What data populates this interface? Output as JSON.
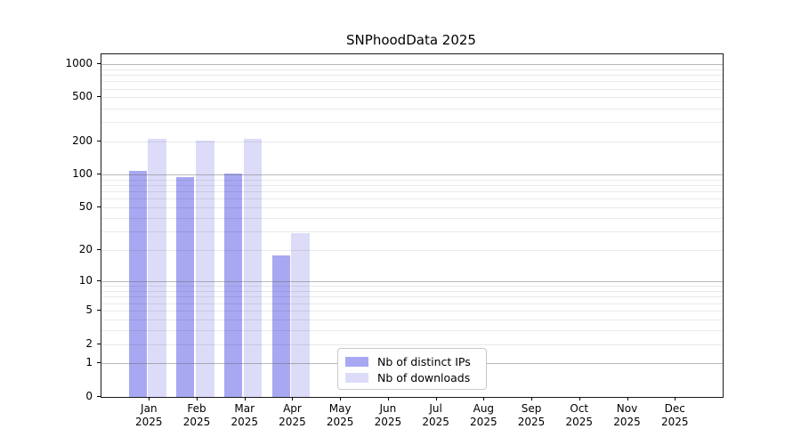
{
  "title": "SNPhoodData 2025",
  "chart_data": {
    "type": "bar",
    "title": "SNPhoodData 2025",
    "categories": [
      "Jan",
      "Feb",
      "Mar",
      "Apr",
      "May",
      "Jun",
      "Jul",
      "Aug",
      "Sep",
      "Oct",
      "Nov",
      "Dec"
    ],
    "year_label": "2025",
    "series": [
      {
        "key": "distinct-ips",
        "name": "Nb of distinct IPs",
        "color": "#a8a8f2",
        "values": [
          108,
          95,
          103,
          18,
          0,
          0,
          0,
          0,
          0,
          0,
          0,
          0
        ]
      },
      {
        "key": "downloads",
        "name": "Nb of downloads",
        "color": "#dcdcf9",
        "values": [
          210,
          202,
          212,
          29,
          0,
          0,
          0,
          0,
          0,
          0,
          0,
          0
        ]
      }
    ],
    "yscale": "log1p",
    "ytick_values": [
      0,
      1,
      2,
      5,
      10,
      20,
      50,
      100,
      200,
      500,
      1000
    ],
    "ytick_labels": [
      "0",
      "1",
      "2",
      "5",
      "10",
      "20",
      "50",
      "100",
      "200",
      "500",
      "1000"
    ],
    "major_gridline_values": [
      1,
      10,
      100,
      1000
    ],
    "minor_gridline_values": [
      2,
      3,
      4,
      5,
      6,
      7,
      8,
      9,
      20,
      30,
      40,
      50,
      60,
      70,
      80,
      90,
      200,
      300,
      400,
      500,
      600,
      700,
      800,
      900
    ],
    "ylim": [
      0,
      1230
    ],
    "grid": "on",
    "legend_position": "lower-center",
    "xlabel": "",
    "ylabel": "",
    "colors": {
      "bar_distinct_ips": "#a8a8f2",
      "bar_downloads": "#dcdcf9",
      "major_grid": "#b4b4b4",
      "minor_grid": "#ebebeb",
      "axis": "#1a1a1a",
      "background": "#ffffff"
    }
  }
}
